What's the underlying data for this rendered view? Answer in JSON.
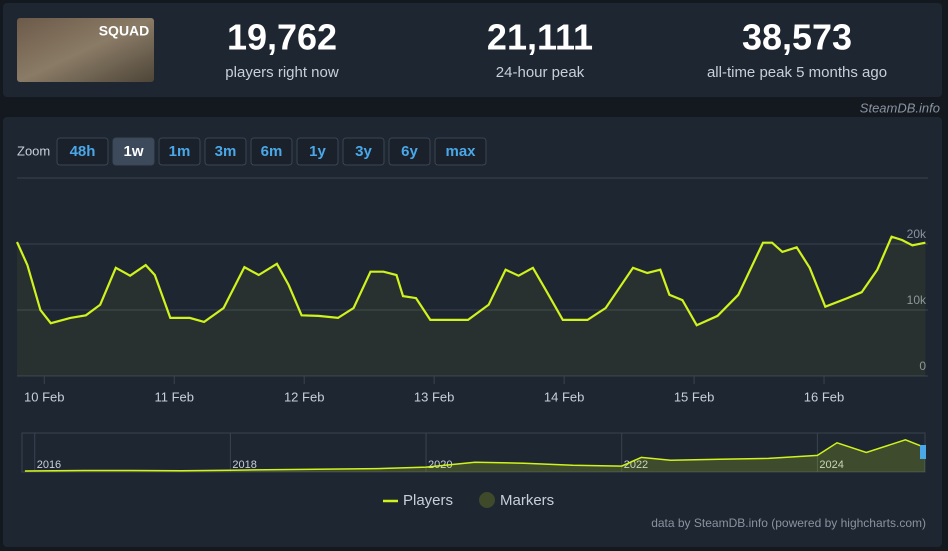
{
  "header": {
    "logo_text": "SQUAD",
    "stats": [
      {
        "value": "19,762",
        "label": "players right now"
      },
      {
        "value": "21,111",
        "label": "24-hour peak"
      },
      {
        "value": "38,573",
        "label": "all-time peak 5 months ago"
      }
    ],
    "source": "SteamDB.info"
  },
  "zoom": {
    "label": "Zoom",
    "buttons": [
      "48h",
      "1w",
      "1m",
      "3m",
      "6m",
      "1y",
      "3y",
      "6y",
      "max"
    ],
    "active": 1
  },
  "chart_data": [
    {
      "type": "line",
      "color": "#d0f31d",
      "grid": true,
      "x": [
        9.79,
        9.87,
        9.97,
        10.05,
        10.2,
        10.32,
        10.43,
        10.55,
        10.66,
        10.78,
        10.85,
        10.97,
        11.12,
        11.23,
        11.38,
        11.54,
        11.65,
        11.79,
        11.88,
        11.98,
        12.11,
        12.26,
        12.38,
        12.51,
        12.61,
        12.71,
        12.76,
        12.86,
        12.97,
        13.15,
        13.26,
        13.42,
        13.55,
        13.65,
        13.76,
        13.86,
        13.99,
        14.18,
        14.32,
        14.53,
        14.64,
        14.74,
        14.81,
        14.91,
        15.02,
        15.18,
        15.34,
        15.53,
        15.6,
        15.68,
        15.79,
        15.89,
        16.01,
        16.18,
        16.29,
        16.41,
        16.52,
        16.6,
        16.68,
        16.78
      ],
      "series": [
        {
          "name": "Players",
          "color": "#d0f31d",
          "values": [
            20300,
            16800,
            10000,
            8000,
            8800,
            9200,
            10800,
            16400,
            15200,
            16800,
            15300,
            8800,
            8800,
            8200,
            10300,
            16500,
            15300,
            17000,
            13800,
            9200,
            9100,
            8800,
            10300,
            15800,
            15800,
            15300,
            12100,
            11800,
            8500,
            8500,
            8500,
            10800,
            16100,
            15200,
            16400,
            13000,
            8500,
            8500,
            10300,
            16400,
            15600,
            16100,
            12300,
            11500,
            7700,
            9100,
            12300,
            20200,
            20200,
            18800,
            19500,
            16400,
            10500,
            11800,
            12700,
            16100,
            21100,
            20600,
            19800,
            20200
          ]
        }
      ],
      "markers_label": "Markers",
      "markers_color": "#3e4a2a",
      "xlim": [
        9.79,
        16.8
      ],
      "xticks": [
        {
          "value": 10,
          "label": "10 Feb"
        },
        {
          "value": 11,
          "label": "11 Feb"
        },
        {
          "value": 12,
          "label": "12 Feb"
        },
        {
          "value": 13,
          "label": "13 Feb"
        },
        {
          "value": 14,
          "label": "14 Feb"
        },
        {
          "value": 15,
          "label": "15 Feb"
        },
        {
          "value": 16,
          "label": "16 Feb"
        }
      ],
      "ylim": [
        0,
        30000
      ],
      "yticks": [
        0,
        {
          "value": 10000,
          "label": "10k"
        },
        {
          "value": 20000,
          "label": "20k"
        }
      ]
    },
    {
      "type": "line",
      "color": "#d0f31d",
      "x": [
        2015.9,
        2016.5,
        2017,
        2017.5,
        2018,
        2018.5,
        2019,
        2019.5,
        2020,
        2020.5,
        2021,
        2021.5,
        2022,
        2022.2,
        2022.5,
        2023,
        2023.5,
        2024,
        2024.2,
        2024.5,
        2024.9,
        2025.1
      ],
      "series": [
        {
          "color": "#d0f31d",
          "values": [
            1000,
            1500,
            1500,
            1200,
            1800,
            2500,
            3000,
            3500,
            5000,
            10000,
            9000,
            7000,
            6000,
            15000,
            12000,
            13000,
            14000,
            17000,
            30000,
            20000,
            33000,
            25000
          ]
        }
      ],
      "xlim": [
        2015.87,
        2025.1
      ],
      "xticks": [
        2016,
        2018,
        2020,
        2022,
        2024
      ],
      "ylim": [
        0,
        40000
      ]
    }
  ],
  "credits": "data by SteamDB.info (powered by highcharts.com)"
}
